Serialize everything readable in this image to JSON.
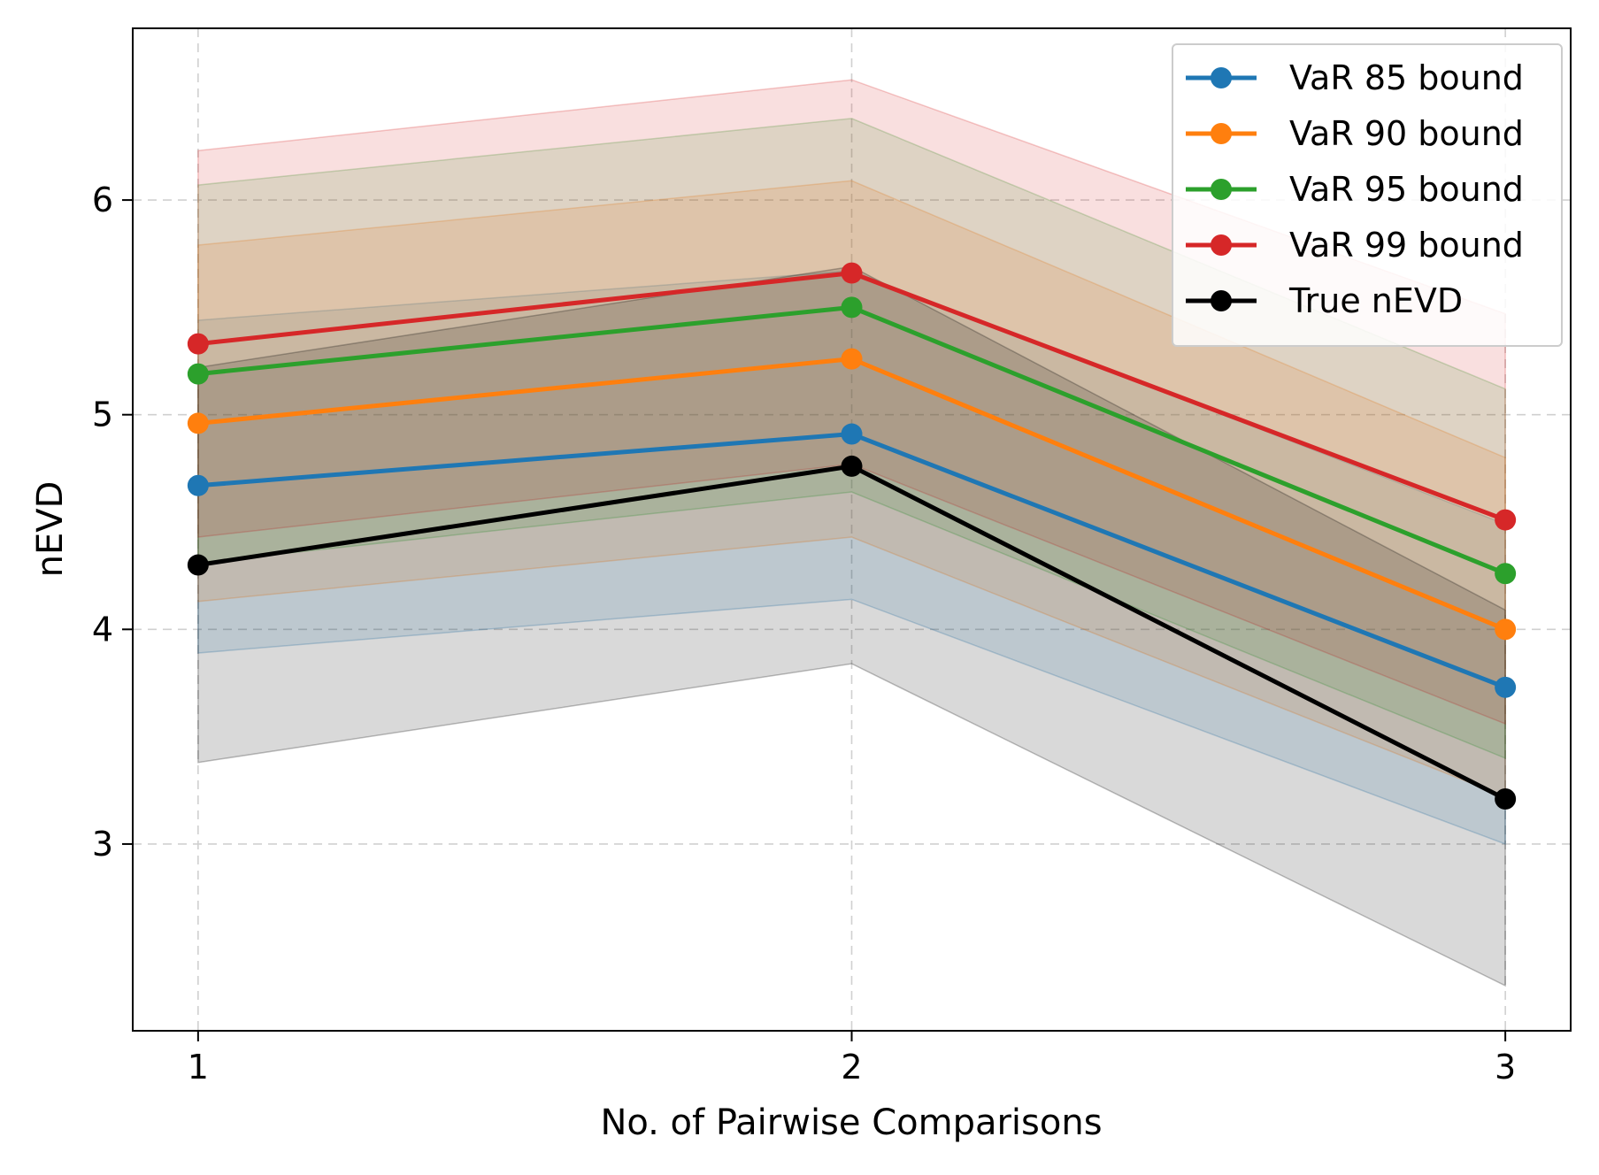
{
  "chart_data": {
    "type": "line",
    "title": "",
    "xlabel": "No. of Pairwise Comparisons",
    "ylabel": "nEVD",
    "x": [
      1,
      2,
      3
    ],
    "x_ticks": [
      "1",
      "2",
      "3"
    ],
    "y_ticks": [
      "3",
      "4",
      "5",
      "6"
    ],
    "xlim": [
      0.9,
      3.1
    ],
    "ylim": [
      2.13,
      6.8
    ],
    "grid": true,
    "legend_position": "top-right",
    "series": [
      {
        "name": "VaR 85 bound",
        "color": "#1f77b4",
        "values": [
          4.67,
          4.91,
          3.73
        ],
        "band_lower": [
          3.89,
          4.14,
          3.0
        ],
        "band_upper": [
          5.44,
          5.67,
          4.49
        ]
      },
      {
        "name": "VaR 90 bound",
        "color": "#ff7f0e",
        "values": [
          4.96,
          5.26,
          4.0
        ],
        "band_lower": [
          4.13,
          4.43,
          3.22
        ],
        "band_upper": [
          5.79,
          6.09,
          4.8
        ]
      },
      {
        "name": "VaR 95 bound",
        "color": "#2ca02c",
        "values": [
          5.19,
          5.5,
          4.26
        ],
        "band_lower": [
          4.31,
          4.64,
          3.4
        ],
        "band_upper": [
          6.07,
          6.38,
          5.12
        ]
      },
      {
        "name": "VaR 99 bound",
        "color": "#d62728",
        "values": [
          5.33,
          5.66,
          4.51
        ],
        "band_lower": [
          4.43,
          4.77,
          3.56
        ],
        "band_upper": [
          6.23,
          6.56,
          5.47
        ]
      },
      {
        "name": "True nEVD",
        "color": "#000000",
        "values": [
          4.3,
          4.76,
          3.21
        ],
        "band_lower": [
          3.38,
          3.84,
          2.34
        ],
        "band_upper": [
          5.22,
          5.69,
          4.09
        ]
      }
    ]
  }
}
